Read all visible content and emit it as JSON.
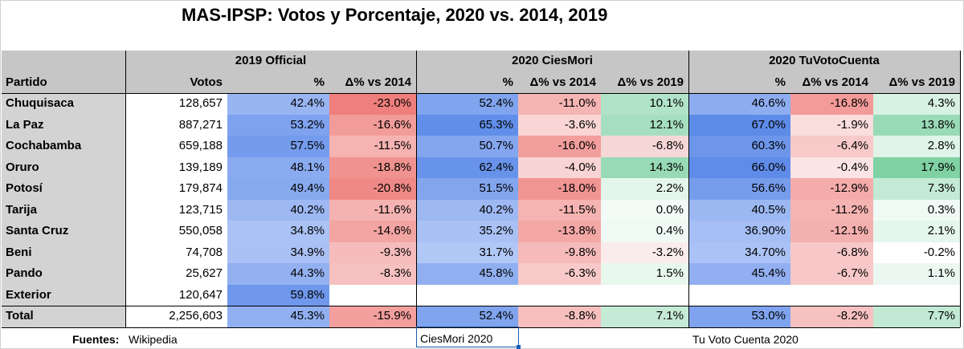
{
  "title": "MAS-IPSP: Votos y Porcentaje, 2020 vs. 2014, 2019",
  "group_headers": [
    "2019 Official",
    "2020 CiesMori",
    "2020 TuVotoCuenta"
  ],
  "column_headers": [
    "Partido",
    "Votos",
    "%",
    "Δ% vs 2014",
    "%",
    "Δ% vs 2014",
    "Δ% vs 2019",
    "%",
    "Δ% vs 2014",
    "Δ% vs 2019"
  ],
  "rows": [
    {
      "name": "Chuquisaca",
      "votos": "128,657",
      "p19": "42.4%",
      "d19_14": "-23.0%",
      "cm_p": "52.4%",
      "cm_d14": "-11.0%",
      "cm_d19": "10.1%",
      "tv_p": "46.6%",
      "tv_d14": "-16.8%",
      "tv_d19": "4.3%"
    },
    {
      "name": "La Paz",
      "votos": "887,271",
      "p19": "53.2%",
      "d19_14": "-16.6%",
      "cm_p": "65.3%",
      "cm_d14": "-3.6%",
      "cm_d19": "12.1%",
      "tv_p": "67.0%",
      "tv_d14": "-1.9%",
      "tv_d19": "13.8%"
    },
    {
      "name": "Cochabamba",
      "votos": "659,188",
      "p19": "57.5%",
      "d19_14": "-11.5%",
      "cm_p": "50.7%",
      "cm_d14": "-16.0%",
      "cm_d19": "-6.8%",
      "tv_p": "60.3%",
      "tv_d14": "-6.4%",
      "tv_d19": "2.8%"
    },
    {
      "name": "Oruro",
      "votos": "139,189",
      "p19": "48.1%",
      "d19_14": "-18.8%",
      "cm_p": "62.4%",
      "cm_d14": "-4.0%",
      "cm_d19": "14.3%",
      "tv_p": "66.0%",
      "tv_d14": "-0.4%",
      "tv_d19": "17.9%"
    },
    {
      "name": "Potosí",
      "votos": "179,874",
      "p19": "49.4%",
      "d19_14": "-20.8%",
      "cm_p": "51.5%",
      "cm_d14": "-18.0%",
      "cm_d19": "2.2%",
      "tv_p": "56.6%",
      "tv_d14": "-12.9%",
      "tv_d19": "7.3%"
    },
    {
      "name": "Tarija",
      "votos": "123,715",
      "p19": "40.2%",
      "d19_14": "-11.6%",
      "cm_p": "40.2%",
      "cm_d14": "-11.5%",
      "cm_d19": "0.0%",
      "tv_p": "40.5%",
      "tv_d14": "-11.2%",
      "tv_d19": "0.3%"
    },
    {
      "name": "Santa Cruz",
      "votos": "550,058",
      "p19": "34.8%",
      "d19_14": "-14.6%",
      "cm_p": "35.2%",
      "cm_d14": "-13.8%",
      "cm_d19": "0.4%",
      "tv_p": "36.90%",
      "tv_d14": "-12.1%",
      "tv_d19": "2.1%"
    },
    {
      "name": "Beni",
      "votos": "74,708",
      "p19": "34.9%",
      "d19_14": "-9.3%",
      "cm_p": "31.7%",
      "cm_d14": "-9.8%",
      "cm_d19": "-3.2%",
      "tv_p": "34.70%",
      "tv_d14": "-6.8%",
      "tv_d19": "-0.2%"
    },
    {
      "name": "Pando",
      "votos": "25,627",
      "p19": "44.3%",
      "d19_14": "-8.3%",
      "cm_p": "45.8%",
      "cm_d14": "-6.3%",
      "cm_d19": "1.5%",
      "tv_p": "45.4%",
      "tv_d14": "-6.7%",
      "tv_d19": "1.1%"
    },
    {
      "name": "Exterior",
      "votos": "120,647",
      "p19": "59.8%",
      "d19_14": "",
      "cm_p": "",
      "cm_d14": "",
      "cm_d19": "",
      "tv_p": "",
      "tv_d14": "",
      "tv_d19": ""
    }
  ],
  "total": {
    "name": "Total",
    "votos": "2,256,603",
    "p19": "45.3%",
    "d19_14": "-15.9%",
    "cm_p": "52.4%",
    "cm_d14": "-8.8%",
    "cm_d19": "7.1%",
    "tv_p": "53.0%",
    "tv_d14": "-8.2%",
    "tv_d19": "7.7%"
  },
  "footer": {
    "sources_label": "Fuentes:",
    "source_1": "Wikipedia",
    "source_2": "CiesMori 2020",
    "source_3": "Tu Voto Cuenta 2020"
  },
  "colors": {
    "header_gray": "#c6c6c6",
    "label_gray": "#d3d3d3",
    "blue_scale": [
      "#b3c8f6",
      "#5b89e8"
    ],
    "red_scale": [
      "#fbe6e6",
      "#ee7f7c"
    ],
    "green_scale": [
      "#f2fbf6",
      "#7fd1a4"
    ]
  }
}
